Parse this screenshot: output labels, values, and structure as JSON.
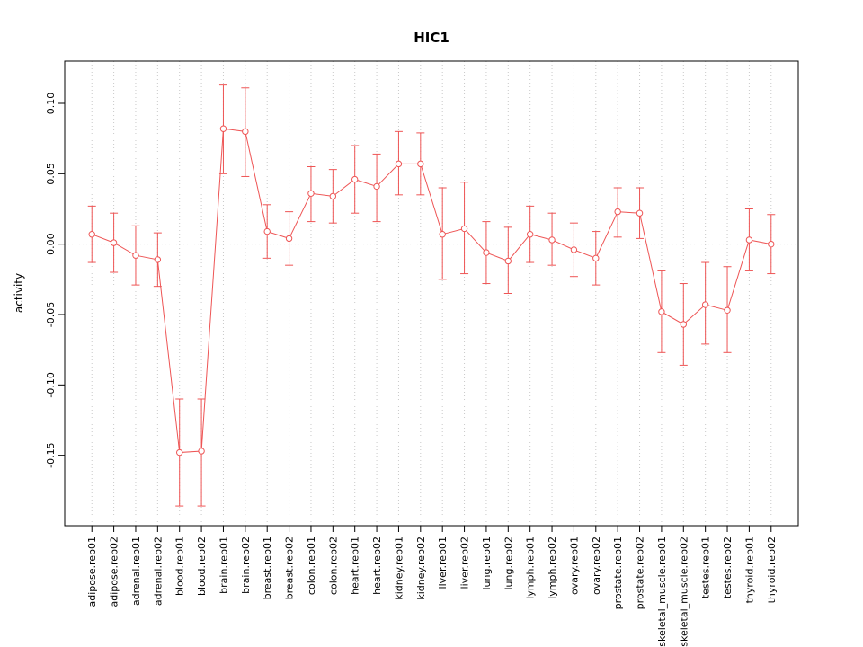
{
  "chart_data": {
    "type": "line",
    "title": "HIC1",
    "xlabel": "",
    "ylabel": "activity",
    "ylim": [
      -0.2,
      0.13
    ],
    "ytick_values": [
      0.1,
      0.05,
      0.0,
      -0.05,
      -0.1,
      -0.15
    ],
    "ytick_labels": [
      "0.10",
      "0.05",
      "0.00",
      "-0.05",
      "-0.10",
      "-0.15"
    ],
    "grid": "vertical-dotted-per-category-plus-dotted-zero-line",
    "legend": "none",
    "series_color": "#ee5555",
    "grid_color": "#c9c9c9",
    "categories": [
      "adipose.rep01",
      "adipose.rep02",
      "adrenal.rep01",
      "adrenal.rep02",
      "blood.rep01",
      "blood.rep02",
      "brain.rep01",
      "brain.rep02",
      "breast.rep01",
      "breast.rep02",
      "colon.rep01",
      "colon.rep02",
      "heart.rep01",
      "heart.rep02",
      "kidney.rep01",
      "kidney.rep02",
      "liver.rep01",
      "liver.rep02",
      "lung.rep01",
      "lung.rep02",
      "lymph.rep01",
      "lymph.rep02",
      "ovary.rep01",
      "ovary.rep02",
      "prostate.rep01",
      "prostate.rep02",
      "skeletal_muscle.rep01",
      "skeletal_muscle.rep02",
      "testes.rep01",
      "testes.rep02",
      "thyroid.rep01",
      "thyroid.rep02"
    ],
    "values": [
      0.007,
      0.001,
      -0.008,
      -0.011,
      -0.148,
      -0.147,
      0.082,
      0.08,
      0.009,
      0.004,
      0.036,
      0.034,
      0.046,
      0.041,
      0.057,
      0.057,
      0.007,
      0.011,
      -0.006,
      -0.012,
      0.007,
      0.003,
      -0.004,
      -0.01,
      0.023,
      0.022,
      -0.048,
      -0.057,
      -0.043,
      -0.047,
      0.003,
      0.0
    ],
    "lower": [
      -0.013,
      -0.02,
      -0.029,
      -0.03,
      -0.186,
      -0.186,
      0.05,
      0.048,
      -0.01,
      -0.015,
      0.016,
      0.015,
      0.022,
      0.016,
      0.035,
      0.035,
      -0.025,
      -0.021,
      -0.028,
      -0.035,
      -0.013,
      -0.015,
      -0.023,
      -0.029,
      0.005,
      0.004,
      -0.077,
      -0.086,
      -0.071,
      -0.077,
      -0.019,
      -0.021
    ],
    "upper": [
      0.027,
      0.022,
      0.013,
      0.008,
      -0.11,
      -0.11,
      0.113,
      0.111,
      0.028,
      0.023,
      0.055,
      0.053,
      0.07,
      0.064,
      0.08,
      0.079,
      0.04,
      0.044,
      0.016,
      0.012,
      0.027,
      0.022,
      0.015,
      0.009,
      0.04,
      0.04,
      -0.019,
      -0.028,
      -0.013,
      -0.016,
      0.025,
      0.021
    ]
  }
}
